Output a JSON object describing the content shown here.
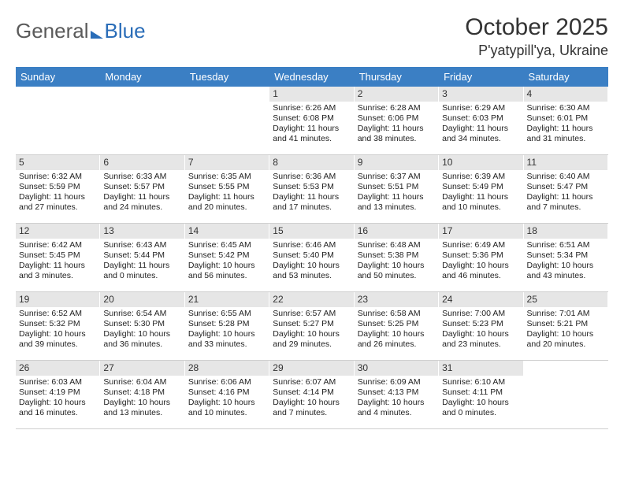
{
  "brand": {
    "part1": "General",
    "part2": "Blue"
  },
  "title": "October 2025",
  "location": "P'yatypill'ya, Ukraine",
  "colors": {
    "header_bg": "#3b7fc4",
    "header_text": "#ffffff",
    "daynum_bg": "#e6e6e6",
    "text": "#222222",
    "brand_gray": "#5a5a5a",
    "brand_blue": "#2a6db8"
  },
  "dayNames": [
    "Sunday",
    "Monday",
    "Tuesday",
    "Wednesday",
    "Thursday",
    "Friday",
    "Saturday"
  ],
  "labels": {
    "sunrise": "Sunrise:",
    "sunset": "Sunset:",
    "daylight": "Daylight:"
  },
  "weeks": [
    [
      {
        "n": "",
        "empty": true
      },
      {
        "n": "",
        "empty": true
      },
      {
        "n": "",
        "empty": true
      },
      {
        "n": "1",
        "sunrise": "6:26 AM",
        "sunset": "6:08 PM",
        "daylight": "11 hours and 41 minutes."
      },
      {
        "n": "2",
        "sunrise": "6:28 AM",
        "sunset": "6:06 PM",
        "daylight": "11 hours and 38 minutes."
      },
      {
        "n": "3",
        "sunrise": "6:29 AM",
        "sunset": "6:03 PM",
        "daylight": "11 hours and 34 minutes."
      },
      {
        "n": "4",
        "sunrise": "6:30 AM",
        "sunset": "6:01 PM",
        "daylight": "11 hours and 31 minutes."
      }
    ],
    [
      {
        "n": "5",
        "sunrise": "6:32 AM",
        "sunset": "5:59 PM",
        "daylight": "11 hours and 27 minutes."
      },
      {
        "n": "6",
        "sunrise": "6:33 AM",
        "sunset": "5:57 PM",
        "daylight": "11 hours and 24 minutes."
      },
      {
        "n": "7",
        "sunrise": "6:35 AM",
        "sunset": "5:55 PM",
        "daylight": "11 hours and 20 minutes."
      },
      {
        "n": "8",
        "sunrise": "6:36 AM",
        "sunset": "5:53 PM",
        "daylight": "11 hours and 17 minutes."
      },
      {
        "n": "9",
        "sunrise": "6:37 AM",
        "sunset": "5:51 PM",
        "daylight": "11 hours and 13 minutes."
      },
      {
        "n": "10",
        "sunrise": "6:39 AM",
        "sunset": "5:49 PM",
        "daylight": "11 hours and 10 minutes."
      },
      {
        "n": "11",
        "sunrise": "6:40 AM",
        "sunset": "5:47 PM",
        "daylight": "11 hours and 7 minutes."
      }
    ],
    [
      {
        "n": "12",
        "sunrise": "6:42 AM",
        "sunset": "5:45 PM",
        "daylight": "11 hours and 3 minutes."
      },
      {
        "n": "13",
        "sunrise": "6:43 AM",
        "sunset": "5:44 PM",
        "daylight": "11 hours and 0 minutes."
      },
      {
        "n": "14",
        "sunrise": "6:45 AM",
        "sunset": "5:42 PM",
        "daylight": "10 hours and 56 minutes."
      },
      {
        "n": "15",
        "sunrise": "6:46 AM",
        "sunset": "5:40 PM",
        "daylight": "10 hours and 53 minutes."
      },
      {
        "n": "16",
        "sunrise": "6:48 AM",
        "sunset": "5:38 PM",
        "daylight": "10 hours and 50 minutes."
      },
      {
        "n": "17",
        "sunrise": "6:49 AM",
        "sunset": "5:36 PM",
        "daylight": "10 hours and 46 minutes."
      },
      {
        "n": "18",
        "sunrise": "6:51 AM",
        "sunset": "5:34 PM",
        "daylight": "10 hours and 43 minutes."
      }
    ],
    [
      {
        "n": "19",
        "sunrise": "6:52 AM",
        "sunset": "5:32 PM",
        "daylight": "10 hours and 39 minutes."
      },
      {
        "n": "20",
        "sunrise": "6:54 AM",
        "sunset": "5:30 PM",
        "daylight": "10 hours and 36 minutes."
      },
      {
        "n": "21",
        "sunrise": "6:55 AM",
        "sunset": "5:28 PM",
        "daylight": "10 hours and 33 minutes."
      },
      {
        "n": "22",
        "sunrise": "6:57 AM",
        "sunset": "5:27 PM",
        "daylight": "10 hours and 29 minutes."
      },
      {
        "n": "23",
        "sunrise": "6:58 AM",
        "sunset": "5:25 PM",
        "daylight": "10 hours and 26 minutes."
      },
      {
        "n": "24",
        "sunrise": "7:00 AM",
        "sunset": "5:23 PM",
        "daylight": "10 hours and 23 minutes."
      },
      {
        "n": "25",
        "sunrise": "7:01 AM",
        "sunset": "5:21 PM",
        "daylight": "10 hours and 20 minutes."
      }
    ],
    [
      {
        "n": "26",
        "sunrise": "6:03 AM",
        "sunset": "4:19 PM",
        "daylight": "10 hours and 16 minutes."
      },
      {
        "n": "27",
        "sunrise": "6:04 AM",
        "sunset": "4:18 PM",
        "daylight": "10 hours and 13 minutes."
      },
      {
        "n": "28",
        "sunrise": "6:06 AM",
        "sunset": "4:16 PM",
        "daylight": "10 hours and 10 minutes."
      },
      {
        "n": "29",
        "sunrise": "6:07 AM",
        "sunset": "4:14 PM",
        "daylight": "10 hours and 7 minutes."
      },
      {
        "n": "30",
        "sunrise": "6:09 AM",
        "sunset": "4:13 PM",
        "daylight": "10 hours and 4 minutes."
      },
      {
        "n": "31",
        "sunrise": "6:10 AM",
        "sunset": "4:11 PM",
        "daylight": "10 hours and 0 minutes."
      },
      {
        "n": "",
        "empty": true
      }
    ]
  ]
}
